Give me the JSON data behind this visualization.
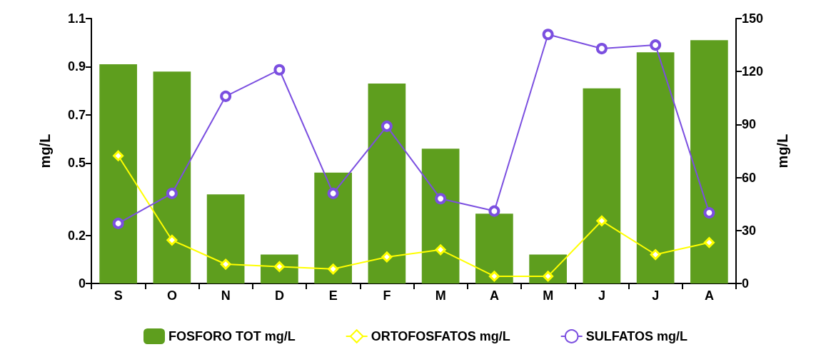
{
  "chart_data": {
    "type": "bar",
    "categories": [
      "S",
      "O",
      "N",
      "D",
      "E",
      "F",
      "M",
      "A",
      "M",
      "J",
      "J",
      "A"
    ],
    "ylabel": "mg/L",
    "y2label": "mg/L",
    "ylim": [
      0,
      1.1
    ],
    "yticks": [
      0,
      0.2,
      0.5,
      0.7,
      0.9,
      1.1
    ],
    "y2lim": [
      0,
      150
    ],
    "y2ticks": [
      0,
      30,
      60,
      90,
      120,
      150
    ],
    "grid": false,
    "legend": "bottom",
    "series": [
      {
        "name": "FOSFORO TOT mg/L",
        "color": "#5e9e1e",
        "values": [
          0.91,
          0.88,
          0.37,
          0.12,
          0.46,
          0.83,
          0.56,
          0.29,
          0.12,
          0.81,
          0.96,
          1.01
        ]
      },
      {
        "name": "ORTOFOSFATOS mg/L",
        "type": "line",
        "color": "#ffff00",
        "marker": "diamond",
        "values": [
          0.53,
          0.18,
          0.08,
          0.07,
          0.06,
          0.11,
          0.14,
          0.03,
          0.03,
          0.26,
          0.12,
          0.17
        ]
      },
      {
        "name": "SULFATOS mg/L",
        "type": "line",
        "axis": "y2",
        "color": "#7b4fe0",
        "marker": "circle",
        "values": [
          34,
          51,
          106,
          121,
          51,
          89,
          48,
          41,
          141,
          133,
          135,
          40
        ]
      }
    ]
  }
}
